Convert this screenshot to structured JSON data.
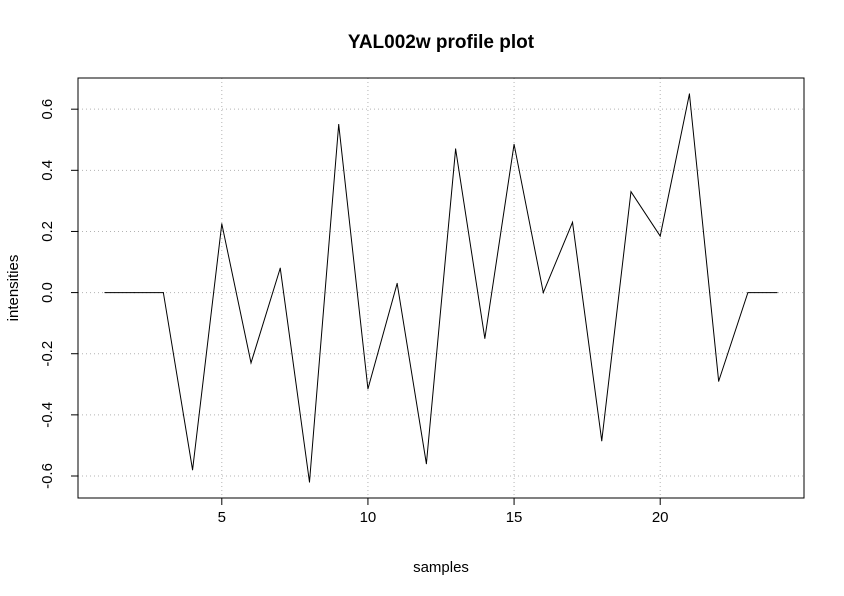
{
  "chart_data": {
    "type": "line",
    "title": "YAL002w profile plot",
    "xlabel": "samples",
    "ylabel": "intensities",
    "xlim": [
      0.08,
      24.92
    ],
    "ylim": [
      -0.672,
      0.702
    ],
    "xticks": [
      5,
      10,
      15,
      20
    ],
    "yticks": [
      -0.6,
      -0.4,
      -0.2,
      0.0,
      0.2,
      0.4,
      0.6
    ],
    "ytick_labels": [
      "-0.6",
      "-0.4",
      "-0.2",
      "0.0",
      "0.2",
      "0.4",
      "0.6"
    ],
    "grid": true,
    "series": [
      {
        "x": [
          1,
          2,
          3,
          4,
          5,
          6,
          7,
          8,
          9,
          10,
          11,
          12,
          13,
          14,
          15,
          16,
          17,
          18,
          19,
          20,
          21,
          22,
          23,
          24
        ],
        "values": [
          0.0,
          0.0,
          0.0,
          -0.58,
          0.225,
          -0.23,
          0.08,
          -0.62,
          0.55,
          -0.315,
          0.03,
          -0.56,
          0.47,
          -0.15,
          0.485,
          0.0,
          0.23,
          -0.485,
          0.33,
          0.185,
          0.65,
          -0.29,
          0.0,
          0.0
        ],
        "color": "#000000"
      }
    ]
  }
}
